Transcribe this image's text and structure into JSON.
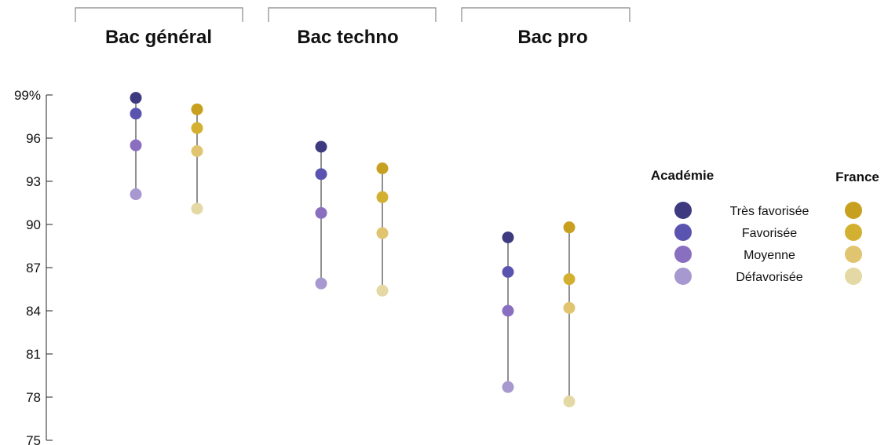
{
  "chart_data": {
    "type": "scatter",
    "groups": [
      "Bac général",
      "Bac techno",
      "Bac pro"
    ],
    "y_ticks": [
      "99%",
      "96",
      "93",
      "90",
      "87",
      "84",
      "81",
      "78",
      "75"
    ],
    "ylim": [
      75,
      99
    ],
    "levels": [
      "Très favorisée",
      "Favorisée",
      "Moyenne",
      "Défavorisée"
    ],
    "series": [
      {
        "name": "Académie",
        "colors": [
          "#3d3a80",
          "#5a54b0",
          "#8a6fc0",
          "#a898d0"
        ],
        "values": [
          [
            98.8,
            97.7,
            95.5,
            92.1
          ],
          [
            95.4,
            93.5,
            90.8,
            85.9
          ],
          [
            89.1,
            86.7,
            84.0,
            78.7
          ]
        ]
      },
      {
        "name": "France",
        "colors": [
          "#c8a020",
          "#d4b030",
          "#e0c470",
          "#e4d8a4"
        ],
        "values": [
          [
            98.0,
            96.7,
            95.1,
            91.1
          ],
          [
            93.9,
            91.9,
            89.4,
            85.4
          ],
          [
            89.8,
            86.2,
            84.2,
            77.7
          ]
        ]
      }
    ],
    "legend_position": "right"
  }
}
